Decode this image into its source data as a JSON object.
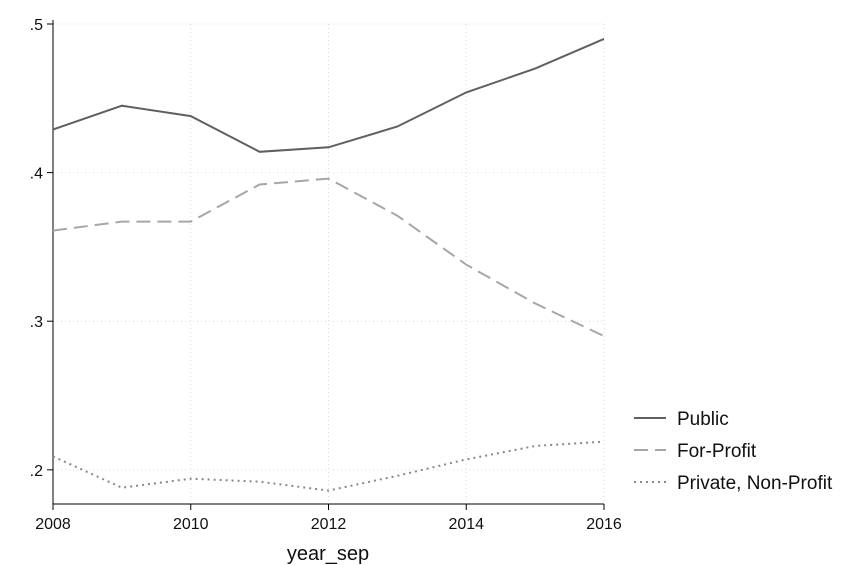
{
  "chart_data": {
    "type": "line",
    "x": [
      2008,
      2009,
      2010,
      2011,
      2012,
      2013,
      2014,
      2015,
      2016
    ],
    "series": [
      {
        "name": "Public",
        "values": [
          0.429,
          0.445,
          0.438,
          0.414,
          0.417,
          0.431,
          0.454,
          0.47,
          0.49
        ],
        "color": "#606060",
        "style": "solid"
      },
      {
        "name": "For-Profit",
        "values": [
          0.361,
          0.367,
          0.367,
          0.392,
          0.396,
          0.371,
          0.338,
          0.312,
          0.29
        ],
        "color": "#a6a6a6",
        "style": "dashed"
      },
      {
        "name": "Private, Non-Profit",
        "values": [
          0.209,
          0.188,
          0.194,
          0.192,
          0.186,
          0.196,
          0.207,
          0.216,
          0.219
        ],
        "color": "#888888",
        "style": "dotted"
      }
    ],
    "xticks": [
      2008,
      2010,
      2012,
      2014,
      2016
    ],
    "yticks": [
      0.2,
      0.3,
      0.4,
      0.5
    ],
    "ytick_labels": [
      ".2",
      ".3",
      ".4",
      ".5"
    ],
    "xlim": [
      2008,
      2016
    ],
    "ylim": [
      0.177,
      0.5
    ],
    "xlabel": "year_sep",
    "ylabel": "",
    "title": "",
    "grid": true,
    "legend_position": "right-bottom"
  }
}
